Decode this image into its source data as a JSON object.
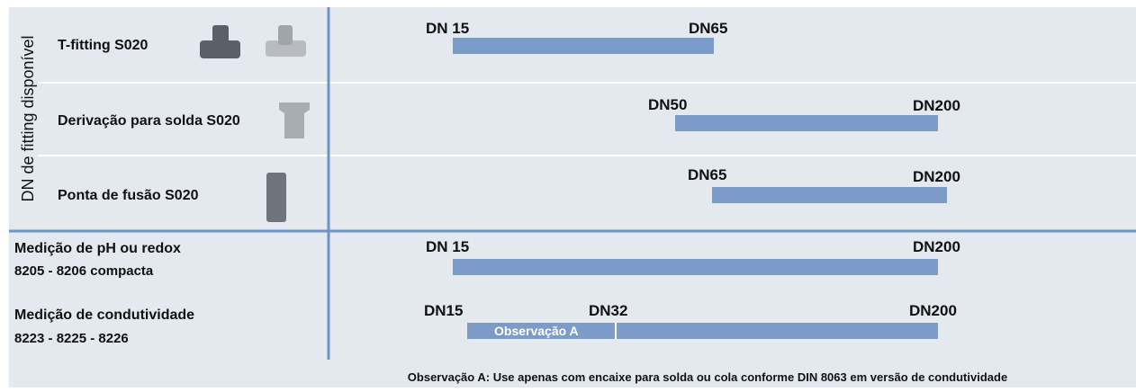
{
  "side_label": "DN de fitting disponível",
  "rows": [
    {
      "label": "T-fitting S020",
      "range_labels": [
        "DN 15",
        "DN65"
      ]
    },
    {
      "label": "Derivação para solda S020",
      "range_labels": [
        "DN50",
        "DN200"
      ]
    },
    {
      "label": "Ponta de fusão S020",
      "range_labels": [
        "DN65",
        "DN200"
      ]
    },
    {
      "label": [
        "Medição de pH ou redox",
        "8205 - 8206 compacta"
      ],
      "range_labels": [
        "DN 15",
        "DN200"
      ]
    },
    {
      "label": [
        "Medição de condutividade",
        "8223 - 8225 - 8226"
      ],
      "range_labels": [
        "DN15",
        "DN32",
        "DN200"
      ],
      "segment_label": "Observação A"
    }
  ],
  "footnote": "Observação A: Use apenas com encaixe para solda ou cola conforme DIN 8063 em versão de condutividade"
}
